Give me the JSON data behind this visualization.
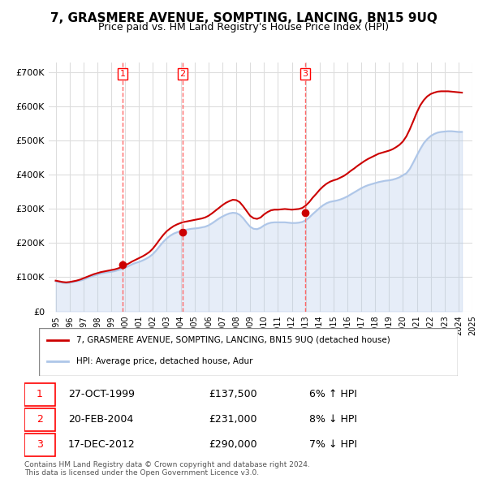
{
  "title": "7, GRASMERE AVENUE, SOMPTING, LANCING, BN15 9UQ",
  "subtitle": "Price paid vs. HM Land Registry's House Price Index (HPI)",
  "xlabel": "",
  "ylabel": "",
  "ylim": [
    0,
    730000
  ],
  "yticks": [
    0,
    100000,
    200000,
    300000,
    400000,
    500000,
    600000,
    700000
  ],
  "ytick_labels": [
    "£0",
    "£100K",
    "£200K",
    "£300K",
    "£400K",
    "£500K",
    "£600K",
    "£700K"
  ],
  "background_color": "#ffffff",
  "grid_color": "#dddddd",
  "hpi_color": "#aec6e8",
  "price_color": "#cc0000",
  "sale_marker_color": "#cc0000",
  "transactions": [
    {
      "label": "1",
      "date": "27-OCT-1999",
      "price": 137500,
      "pct": "6%",
      "direction": "↑",
      "year": 1999.82
    },
    {
      "label": "2",
      "date": "20-FEB-2004",
      "price": 231000,
      "pct": "8%",
      "direction": "↓",
      "year": 2004.13
    },
    {
      "label": "3",
      "date": "17-DEC-2012",
      "price": 290000,
      "pct": "7%",
      "direction": "↓",
      "year": 2012.96
    }
  ],
  "legend_house_label": "7, GRASMERE AVENUE, SOMPTING, LANCING, BN15 9UQ (detached house)",
  "legend_hpi_label": "HPI: Average price, detached house, Adur",
  "footnote": "Contains HM Land Registry data © Crown copyright and database right 2024.\nThis data is licensed under the Open Government Licence v3.0.",
  "hpi_data": {
    "years": [
      1995.0,
      1995.25,
      1995.5,
      1995.75,
      1996.0,
      1996.25,
      1996.5,
      1996.75,
      1997.0,
      1997.25,
      1997.5,
      1997.75,
      1998.0,
      1998.25,
      1998.5,
      1998.75,
      1999.0,
      1999.25,
      1999.5,
      1999.75,
      2000.0,
      2000.25,
      2000.5,
      2000.75,
      2001.0,
      2001.25,
      2001.5,
      2001.75,
      2002.0,
      2002.25,
      2002.5,
      2002.75,
      2003.0,
      2003.25,
      2003.5,
      2003.75,
      2004.0,
      2004.25,
      2004.5,
      2004.75,
      2005.0,
      2005.25,
      2005.5,
      2005.75,
      2006.0,
      2006.25,
      2006.5,
      2006.75,
      2007.0,
      2007.25,
      2007.5,
      2007.75,
      2008.0,
      2008.25,
      2008.5,
      2008.75,
      2009.0,
      2009.25,
      2009.5,
      2009.75,
      2010.0,
      2010.25,
      2010.5,
      2010.75,
      2011.0,
      2011.25,
      2011.5,
      2011.75,
      2012.0,
      2012.25,
      2012.5,
      2012.75,
      2013.0,
      2013.25,
      2013.5,
      2013.75,
      2014.0,
      2014.25,
      2014.5,
      2014.75,
      2015.0,
      2015.25,
      2015.5,
      2015.75,
      2016.0,
      2016.25,
      2016.5,
      2016.75,
      2017.0,
      2017.25,
      2017.5,
      2017.75,
      2018.0,
      2018.25,
      2018.5,
      2018.75,
      2019.0,
      2019.25,
      2019.5,
      2019.75,
      2020.0,
      2020.25,
      2020.5,
      2020.75,
      2021.0,
      2021.25,
      2021.5,
      2021.75,
      2022.0,
      2022.25,
      2022.5,
      2022.75,
      2023.0,
      2023.25,
      2023.5,
      2023.75,
      2024.0,
      2024.25
    ],
    "values": [
      88000,
      86000,
      84000,
      83000,
      84000,
      86000,
      88000,
      90000,
      93000,
      97000,
      101000,
      105000,
      108000,
      111000,
      113000,
      115000,
      116000,
      118000,
      121000,
      124000,
      128000,
      133000,
      138000,
      142000,
      145000,
      149000,
      154000,
      160000,
      168000,
      179000,
      192000,
      204000,
      214000,
      222000,
      228000,
      232000,
      236000,
      238000,
      240000,
      242000,
      243000,
      244000,
      246000,
      248000,
      252000,
      258000,
      265000,
      272000,
      278000,
      283000,
      287000,
      289000,
      288000,
      283000,
      273000,
      260000,
      248000,
      242000,
      241000,
      245000,
      252000,
      257000,
      260000,
      261000,
      261000,
      261000,
      261000,
      260000,
      259000,
      259000,
      260000,
      262000,
      267000,
      275000,
      285000,
      294000,
      303000,
      311000,
      317000,
      321000,
      323000,
      325000,
      328000,
      332000,
      337000,
      343000,
      349000,
      355000,
      361000,
      366000,
      370000,
      373000,
      376000,
      379000,
      381000,
      383000,
      384000,
      386000,
      389000,
      393000,
      399000,
      405000,
      418000,
      437000,
      457000,
      476000,
      493000,
      505000,
      514000,
      520000,
      524000,
      526000,
      527000,
      528000,
      528000,
      527000,
      526000,
      526000
    ]
  },
  "price_data": {
    "years": [
      1995.0,
      1995.25,
      1995.5,
      1995.75,
      1996.0,
      1996.25,
      1996.5,
      1996.75,
      1997.0,
      1997.25,
      1997.5,
      1997.75,
      1998.0,
      1998.25,
      1998.5,
      1998.75,
      1999.0,
      1999.25,
      1999.5,
      1999.75,
      2000.0,
      2000.25,
      2000.5,
      2000.75,
      2001.0,
      2001.25,
      2001.5,
      2001.75,
      2002.0,
      2002.25,
      2002.5,
      2002.75,
      2003.0,
      2003.25,
      2003.5,
      2003.75,
      2004.0,
      2004.25,
      2004.5,
      2004.75,
      2005.0,
      2005.25,
      2005.5,
      2005.75,
      2006.0,
      2006.25,
      2006.5,
      2006.75,
      2007.0,
      2007.25,
      2007.5,
      2007.75,
      2008.0,
      2008.25,
      2008.5,
      2008.75,
      2009.0,
      2009.25,
      2009.5,
      2009.75,
      2010.0,
      2010.25,
      2010.5,
      2010.75,
      2011.0,
      2011.25,
      2011.5,
      2011.75,
      2012.0,
      2012.25,
      2012.5,
      2012.75,
      2013.0,
      2013.25,
      2013.5,
      2013.75,
      2014.0,
      2014.25,
      2014.5,
      2014.75,
      2015.0,
      2015.25,
      2015.5,
      2015.75,
      2016.0,
      2016.25,
      2016.5,
      2016.75,
      2017.0,
      2017.25,
      2017.5,
      2017.75,
      2018.0,
      2018.25,
      2018.5,
      2018.75,
      2019.0,
      2019.25,
      2019.5,
      2019.75,
      2020.0,
      2020.25,
      2020.5,
      2020.75,
      2021.0,
      2021.25,
      2021.5,
      2021.75,
      2022.0,
      2022.25,
      2022.5,
      2022.75,
      2023.0,
      2023.25,
      2023.5,
      2023.75,
      2024.0,
      2024.25
    ],
    "values": [
      90000,
      88000,
      86000,
      85000,
      86000,
      88000,
      90000,
      93000,
      97000,
      101000,
      105000,
      109000,
      112000,
      115000,
      117000,
      119000,
      121000,
      123000,
      126000,
      130000,
      135000,
      140000,
      146000,
      151000,
      156000,
      161000,
      167000,
      174000,
      184000,
      197000,
      211000,
      224000,
      235000,
      243000,
      250000,
      255000,
      259000,
      262000,
      264000,
      266000,
      268000,
      270000,
      272000,
      275000,
      280000,
      287000,
      295000,
      303000,
      311000,
      318000,
      323000,
      327000,
      326000,
      320000,
      308000,
      294000,
      280000,
      273000,
      271000,
      275000,
      284000,
      291000,
      296000,
      298000,
      298000,
      299000,
      300000,
      299000,
      298000,
      299000,
      300000,
      303000,
      310000,
      320000,
      333000,
      344000,
      356000,
      366000,
      374000,
      380000,
      384000,
      387000,
      392000,
      397000,
      404000,
      412000,
      419000,
      427000,
      434000,
      441000,
      447000,
      452000,
      457000,
      462000,
      465000,
      468000,
      471000,
      475000,
      481000,
      488000,
      498000,
      513000,
      534000,
      558000,
      583000,
      604000,
      619000,
      630000,
      637000,
      641000,
      644000,
      645000,
      645000,
      645000,
      644000,
      643000,
      642000,
      641000
    ]
  },
  "vline_color": "#ff6666",
  "vline_style": "--",
  "sale_numbers_fontsize": 8
}
